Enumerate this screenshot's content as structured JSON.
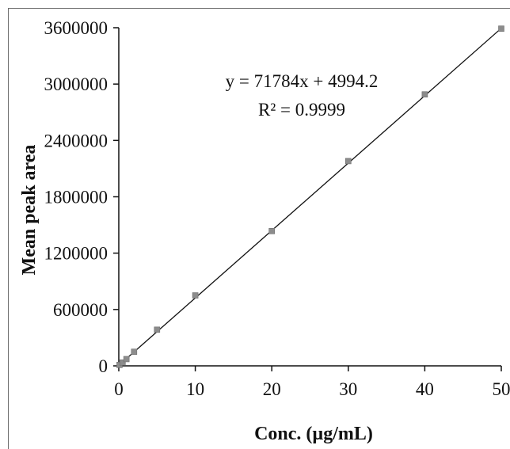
{
  "chart_data": {
    "type": "scatter",
    "xlabel": "Conc. (µg/mL)",
    "ylabel": "Mean peak area",
    "xlim": [
      0,
      50
    ],
    "ylim": [
      0,
      3600000
    ],
    "x_ticks": [
      "0",
      "10",
      "20",
      "30",
      "40",
      "50"
    ],
    "y_ticks": [
      "0",
      "600000",
      "1200000",
      "1800000",
      "2400000",
      "3000000",
      "3600000"
    ],
    "grid": false,
    "legend": "none",
    "series": [
      {
        "marker_color": "#8c8c8c",
        "x": [
          0.1,
          0.5,
          1,
          2,
          5,
          10,
          20,
          30,
          40,
          50
        ],
        "y": [
          10000,
          35000,
          72000,
          150000,
          385000,
          750000,
          1435000,
          2180000,
          2890000,
          3590000
        ]
      }
    ],
    "trendline": {
      "slope": 71784,
      "intercept": 4994.2,
      "color": "#111111"
    },
    "annotations": {
      "equation": "y = 71784x + 4994.2",
      "r_squared": "R² = 0.9999"
    }
  }
}
